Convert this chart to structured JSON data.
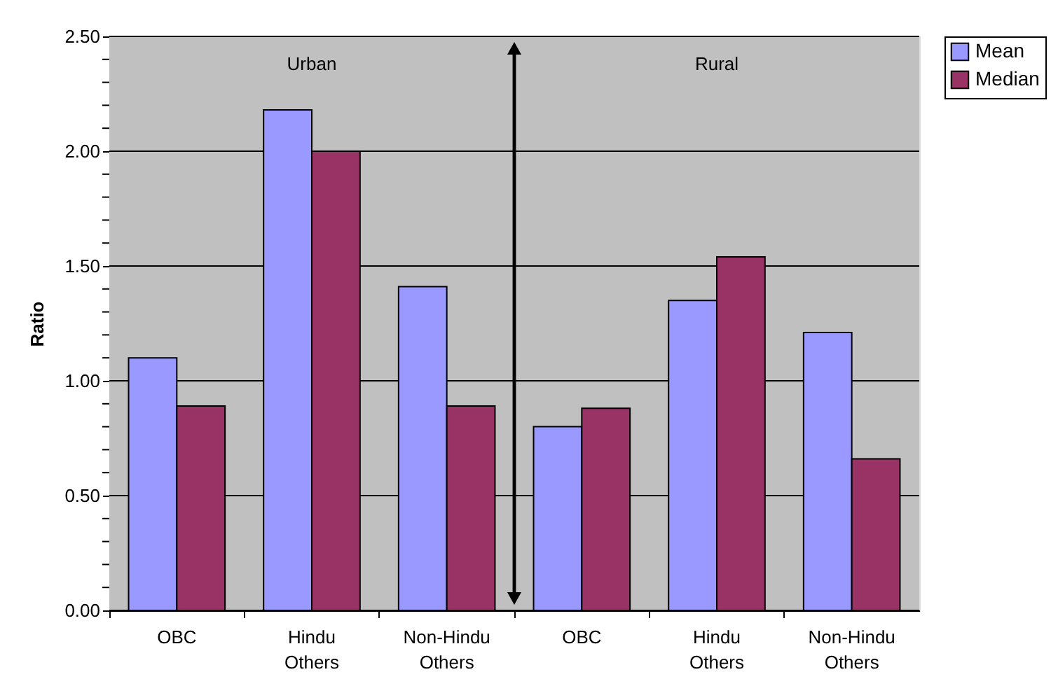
{
  "chart_data": {
    "type": "bar",
    "ylabel": "Ratio",
    "categories": [
      "OBC",
      "Hindu Others",
      "Non-Hindu Others",
      "OBC",
      "Hindu Others",
      "Non-Hindu Others"
    ],
    "series": [
      {
        "name": "Mean",
        "color": "#9999ff",
        "values": [
          1.1,
          2.18,
          1.41,
          0.8,
          1.35,
          1.21
        ]
      },
      {
        "name": "Median",
        "color": "#993366",
        "values": [
          0.89,
          2.0,
          0.89,
          0.88,
          1.54,
          0.66
        ]
      }
    ],
    "ylim": [
      0,
      2.5
    ],
    "yticks": [
      "0.00",
      {
        "value": 0.1,
        "label": null
      },
      {
        "value": 0.2,
        "label": null
      },
      {
        "value": 0.3,
        "label": null
      },
      {
        "value": 0.4,
        "label": null
      },
      {
        "value": 0.5,
        "label": "0.50"
      },
      {
        "value": 0.6,
        "label": null
      },
      {
        "value": 0.7,
        "label": null
      },
      {
        "value": 0.8,
        "label": null
      },
      {
        "value": 0.9,
        "label": null
      },
      {
        "value": 1.0,
        "label": "1.00"
      },
      {
        "value": 1.1,
        "label": null
      },
      {
        "value": 1.2,
        "label": null
      },
      {
        "value": 1.3,
        "label": null
      },
      {
        "value": 1.4,
        "label": null
      },
      {
        "value": 1.5,
        "label": "1.50"
      },
      {
        "value": 1.6,
        "label": null
      },
      {
        "value": 1.7,
        "label": null
      },
      {
        "value": 1.8,
        "label": null
      },
      {
        "value": 1.9,
        "label": null
      },
      {
        "value": 2.0,
        "label": "2.00"
      },
      {
        "value": 2.1,
        "label": null
      },
      {
        "value": 2.2,
        "label": null
      },
      {
        "value": 2.3,
        "label": null
      },
      {
        "value": 2.4,
        "label": null
      },
      {
        "value": 2.5,
        "label": "2.50"
      }
    ],
    "grid": "y",
    "legend": "right",
    "annotations": [
      "Urban",
      "Rural"
    ]
  }
}
